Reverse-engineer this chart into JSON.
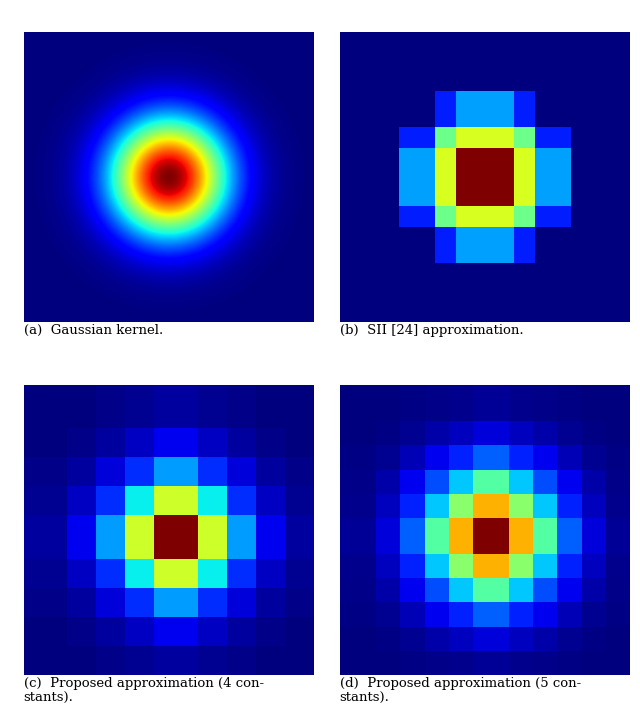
{
  "title_a": "(a)  Gaussian kernel.",
  "title_b": "(b)  SII [24] approximation.",
  "title_c": "(c)  Proposed approximation (4 con-\nstants).",
  "title_d": "(d)  Proposed approximation (5 con-\nstants).",
  "figsize": [
    6.4,
    7.18
  ],
  "dpi": 100,
  "colormap": "jet",
  "gauss_sigma": 0.28,
  "sii_boxes": [
    {
      "hw": 13,
      "hh": 28,
      "weight": 1.0
    },
    {
      "hw": 28,
      "hh": 13,
      "weight": 1.0
    },
    {
      "hw": 20,
      "hh": 20,
      "weight": 1.0
    }
  ],
  "sii_outer_box": {
    "hw": 18,
    "hh": 35,
    "weight": 0.5
  },
  "prop4_cell": 8,
  "prop4_weights": [
    0.0,
    0.08,
    0.18,
    0.38,
    0.65,
    1.0
  ],
  "prop5_cell": 7,
  "prop5_weights": [
    0.0,
    0.06,
    0.14,
    0.28,
    0.5,
    0.75,
    1.0
  ]
}
